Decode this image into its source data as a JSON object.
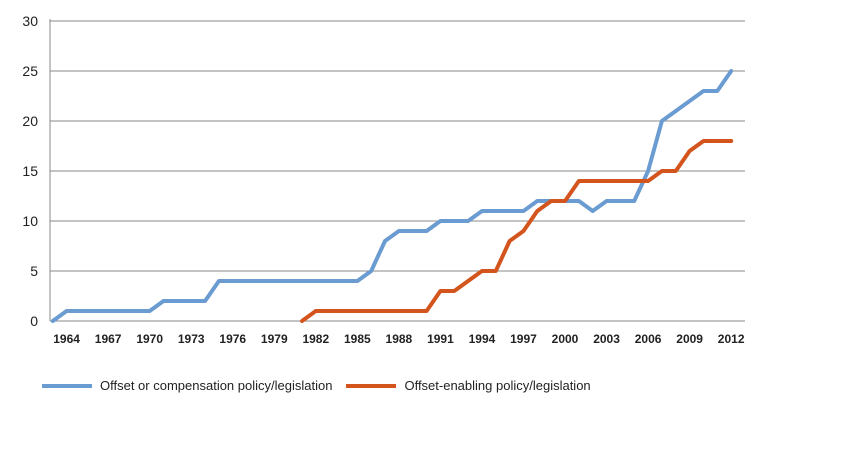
{
  "chart_data": {
    "type": "line",
    "title": "",
    "xlabel": "",
    "ylabel": "",
    "x_tick_labels": [
      "1964",
      "1967",
      "1970",
      "1973",
      "1976",
      "1979",
      "1982",
      "1985",
      "1988",
      "1991",
      "1994",
      "1997",
      "2000",
      "2003",
      "2006",
      "2009",
      "2012"
    ],
    "y_tick_labels": [
      "0",
      "5",
      "10",
      "15",
      "20",
      "25",
      "30"
    ],
    "y_tick_values": [
      0,
      5,
      10,
      15,
      20,
      25,
      30
    ],
    "xlim": [
      1962.8,
      2013
    ],
    "ylim": [
      0,
      30
    ],
    "grid": "horizontal",
    "legend_position": "bottom",
    "series": [
      {
        "name": "Offset or compensation policy/legislation",
        "color": "#6a9bd1",
        "x": [
          1963,
          1964,
          1965,
          1966,
          1967,
          1968,
          1969,
          1970,
          1971,
          1972,
          1973,
          1974,
          1975,
          1976,
          1977,
          1978,
          1979,
          1980,
          1981,
          1982,
          1983,
          1984,
          1985,
          1986,
          1987,
          1988,
          1989,
          1990,
          1991,
          1992,
          1993,
          1994,
          1995,
          1996,
          1997,
          1998,
          1999,
          2000,
          2001,
          2002,
          2003,
          2004,
          2005,
          2006,
          2007,
          2008,
          2009,
          2010,
          2011,
          2012
        ],
        "values": [
          0,
          1,
          1,
          1,
          1,
          1,
          1,
          1,
          2,
          2,
          2,
          2,
          4,
          4,
          4,
          4,
          4,
          4,
          4,
          4,
          4,
          4,
          4,
          5,
          8,
          9,
          9,
          9,
          10,
          10,
          10,
          11,
          11,
          11,
          11,
          12,
          12,
          12,
          12,
          11,
          12,
          12,
          12,
          15,
          20,
          21,
          22,
          23,
          23,
          25
        ]
      },
      {
        "name": "Offset-enabling policy/legislation",
        "color": "#d4541d",
        "x": [
          1981,
          1982,
          1983,
          1984,
          1985,
          1986,
          1987,
          1988,
          1989,
          1990,
          1991,
          1992,
          1993,
          1994,
          1995,
          1996,
          1997,
          1998,
          1999,
          2000,
          2001,
          2002,
          2003,
          2004,
          2005,
          2006,
          2007,
          2008,
          2009,
          2010,
          2011,
          2012
        ],
        "values": [
          0,
          1,
          1,
          1,
          1,
          1,
          1,
          1,
          1,
          1,
          3,
          3,
          4,
          5,
          5,
          8,
          9,
          11,
          12,
          12,
          14,
          14,
          14,
          14,
          14,
          14,
          15,
          15,
          17,
          18,
          18,
          18
        ]
      }
    ]
  }
}
